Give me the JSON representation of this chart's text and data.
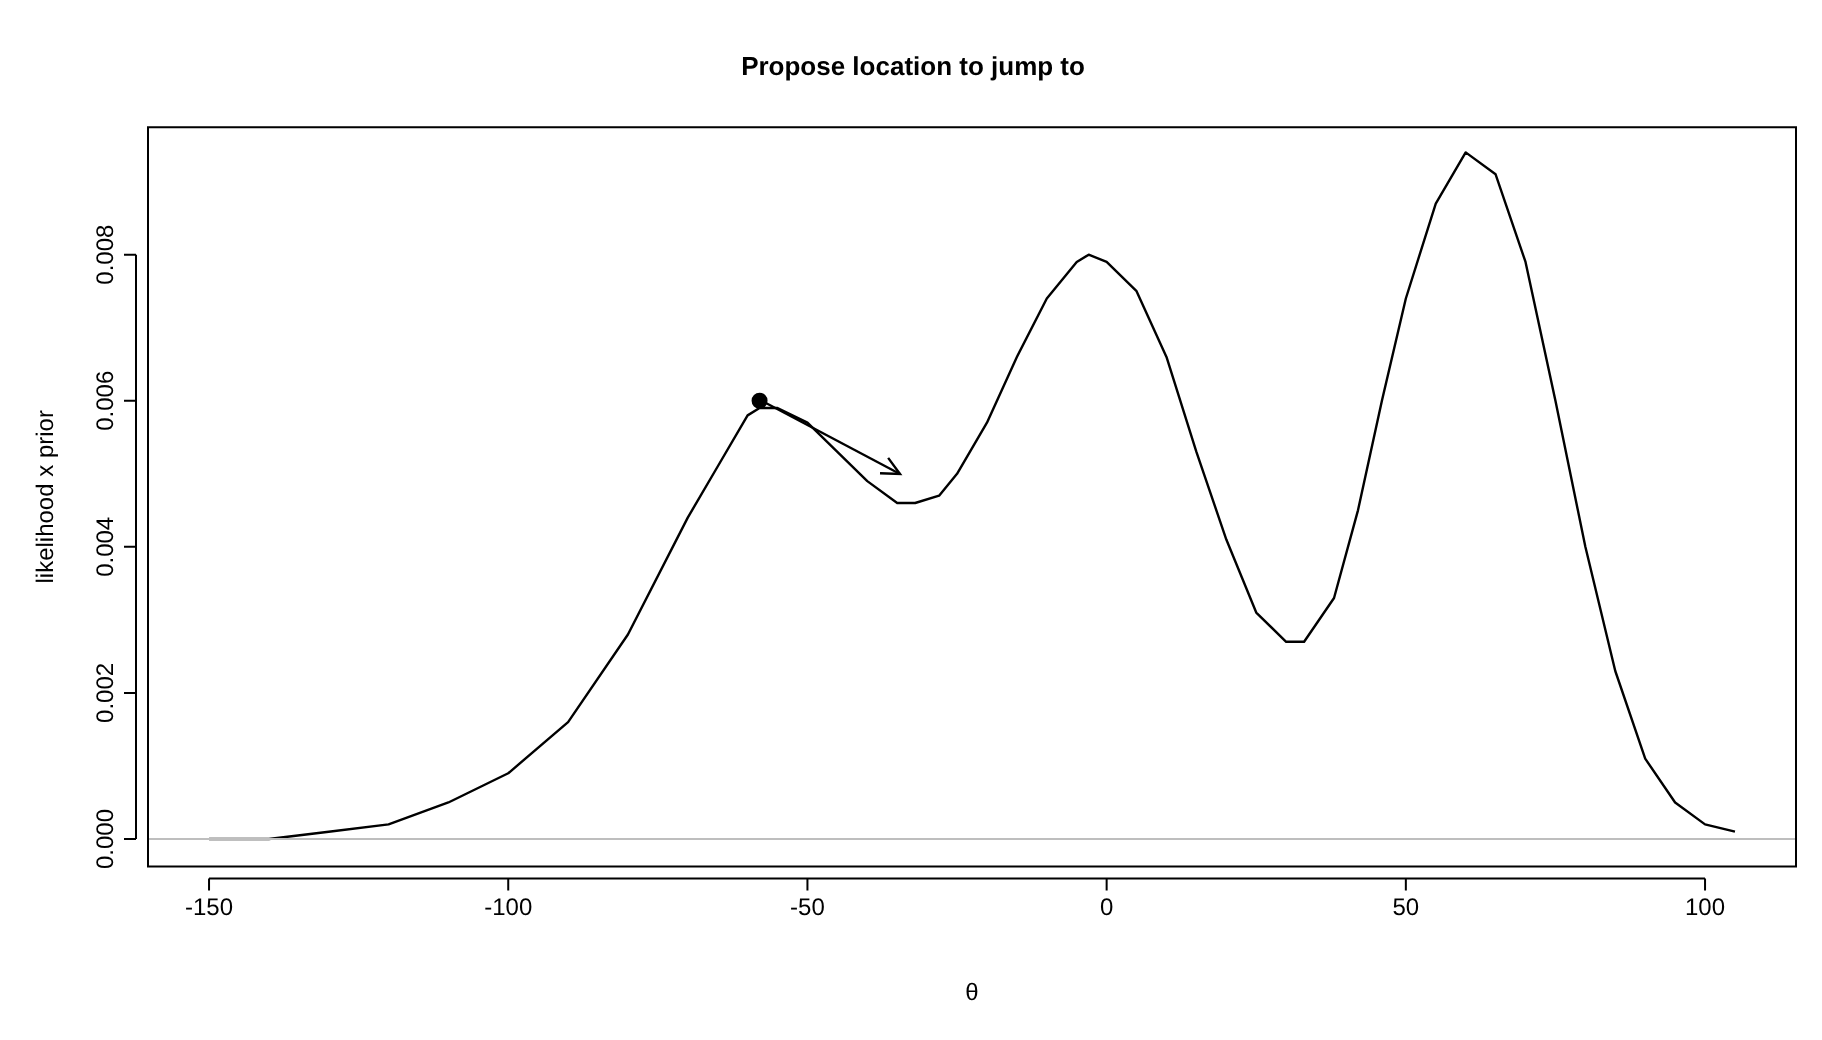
{
  "chart_data": {
    "type": "line",
    "title": "Propose location to jump to",
    "xlabel": "θ",
    "ylabel": "likelihood x prior",
    "xlim": [
      -160.2,
      115.2
    ],
    "xticks": [
      -150,
      -100,
      -50,
      0,
      50,
      100
    ],
    "ylim": [
      -0.000375,
      0.009745
    ],
    "yticks": [
      {
        "value": 0,
        "label": "0.000"
      },
      {
        "value": 0.002,
        "label": "0.002"
      },
      {
        "value": 0.004,
        "label": "0.004"
      },
      {
        "value": 0.006,
        "label": "0.006"
      },
      {
        "value": 0.008,
        "label": "0.008"
      }
    ],
    "grid": false,
    "legend": false,
    "marker": "none",
    "line_style": "solid",
    "ref_lines": [
      {
        "axis": "y",
        "value": 0,
        "color": "#bebebe"
      }
    ],
    "series": [
      {
        "color": "#000000",
        "x": [
          -150,
          -140,
          -130,
          -120,
          -110,
          -100,
          -90,
          -80,
          -70,
          -65,
          -60,
          -58,
          -55,
          -50,
          -45,
          -40,
          -35,
          -32,
          -28,
          -25,
          -20,
          -15,
          -10,
          -5,
          -3,
          0,
          5,
          10,
          15,
          20,
          25,
          30,
          33,
          38,
          42,
          46,
          50,
          55,
          60,
          65,
          70,
          75,
          80,
          85,
          90,
          95,
          100,
          105
        ],
        "values": [
          0,
          0,
          0.0001,
          0.0002,
          0.0005,
          0.0009,
          0.0016,
          0.0028,
          0.0044,
          0.0051,
          0.0058,
          0.0059,
          0.0059,
          0.0057,
          0.0053,
          0.0049,
          0.0046,
          0.0046,
          0.0047,
          0.005,
          0.0057,
          0.0066,
          0.0074,
          0.0079,
          0.008,
          0.0079,
          0.0075,
          0.0066,
          0.0053,
          0.0041,
          0.0031,
          0.0027,
          0.0027,
          0.0033,
          0.0045,
          0.006,
          0.0074,
          0.0087,
          0.0094,
          0.0091,
          0.0079,
          0.006,
          0.004,
          0.0023,
          0.0011,
          0.0005,
          0.0002,
          0.0001
        ]
      },
      {
        "type": "scatter",
        "color": "#000000",
        "marker": "circle",
        "x": [
          -58
        ],
        "values": [
          0.006
        ]
      }
    ]
  }
}
